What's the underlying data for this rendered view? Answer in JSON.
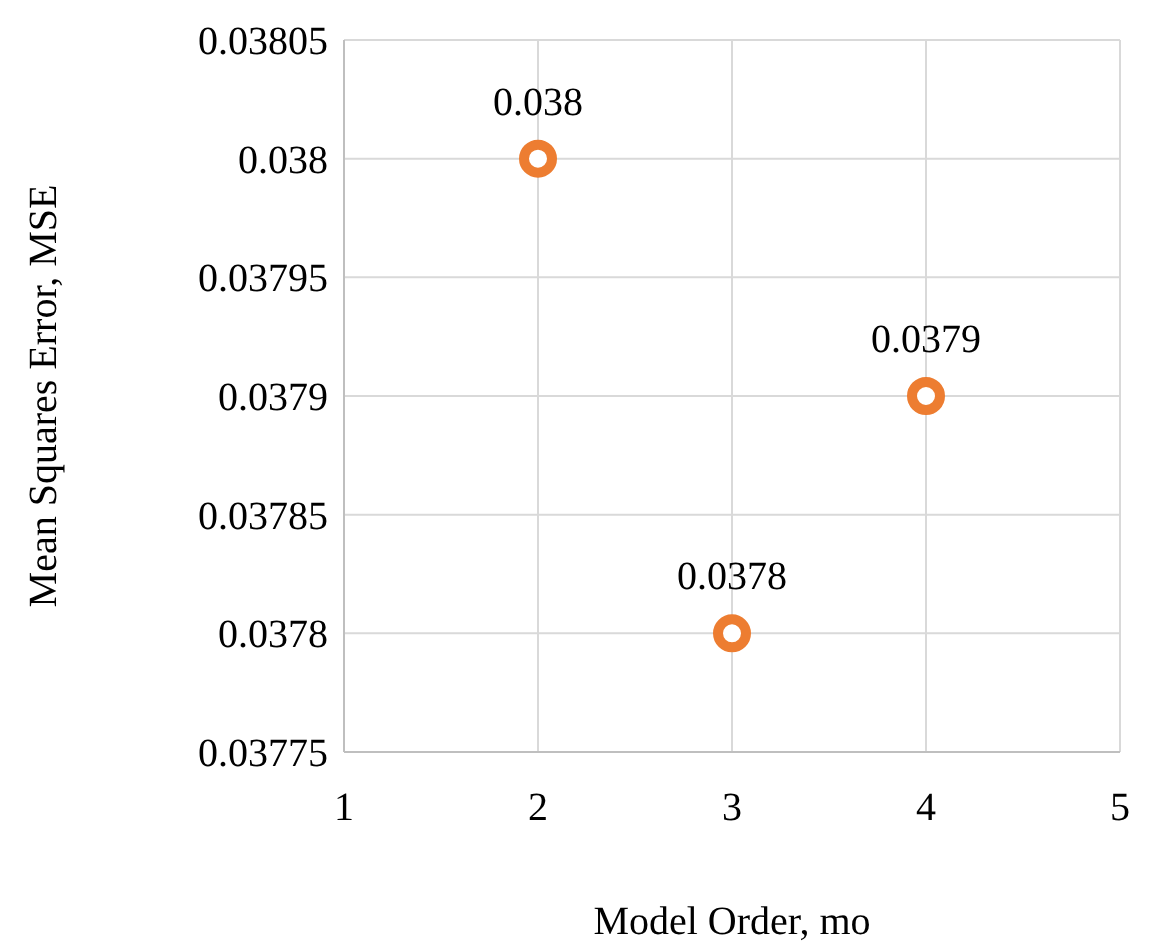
{
  "chart_data": {
    "type": "scatter",
    "xlabel": "Model Order, mo",
    "ylabel": "Mean Squares Error, MSE",
    "x": [
      2,
      3,
      4
    ],
    "series": [
      {
        "color": "#ed7d31",
        "values": [
          0.038,
          0.0378,
          0.0379
        ]
      }
    ],
    "xlim": [
      1,
      5
    ],
    "xticks": [
      1,
      2,
      3,
      4,
      5
    ],
    "ylim": [
      0.03775,
      0.03805
    ],
    "yticks": [
      0.03775,
      0.0378,
      0.03785,
      0.0379,
      0.03795,
      0.038,
      0.03805
    ],
    "grid": true,
    "marker": "circle",
    "data_labels": true
  }
}
